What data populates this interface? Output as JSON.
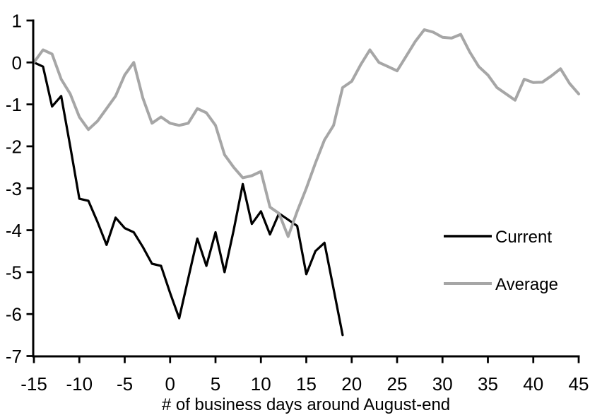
{
  "chart_data": {
    "type": "line",
    "title": "",
    "xlabel": "# of business days around August-end",
    "ylabel": "",
    "xlim": [
      -15,
      45
    ],
    "ylim": [
      -7,
      1
    ],
    "x_ticks": [
      -15,
      -10,
      -5,
      0,
      5,
      10,
      15,
      20,
      25,
      30,
      35,
      40,
      45
    ],
    "y_ticks": [
      1,
      0,
      -1,
      -2,
      -3,
      -4,
      -5,
      -6,
      -7
    ],
    "grid": false,
    "legend_position": "right-middle",
    "axis_color": "#000000",
    "series": [
      {
        "name": "Current",
        "color": "#000000",
        "stroke_width": 3.25,
        "x": [
          -15,
          -14,
          -13,
          -12,
          -11,
          -10,
          -9,
          -8,
          -7,
          -6,
          -5,
          -4,
          -3,
          -2,
          -1,
          0,
          1,
          2,
          3,
          4,
          5,
          6,
          7,
          8,
          9,
          10,
          11,
          12,
          13,
          14,
          15,
          16,
          17,
          18,
          19
        ],
        "values": [
          0.0,
          -0.1,
          -1.05,
          -0.8,
          -2.0,
          -3.25,
          -3.3,
          -3.8,
          -4.35,
          -3.7,
          -3.95,
          -4.05,
          -4.4,
          -4.8,
          -4.85,
          -5.5,
          -6.1,
          -5.15,
          -4.2,
          -4.85,
          -4.05,
          -5.0,
          -4.0,
          -2.9,
          -3.85,
          -3.55,
          -4.1,
          -3.6,
          -3.75,
          -3.9,
          -5.05,
          -4.5,
          -4.3,
          -5.4,
          -6.5
        ]
      },
      {
        "name": "Average",
        "color": "#a6a6a6",
        "stroke_width": 4,
        "x": [
          -15,
          -14,
          -13,
          -12,
          -11,
          -10,
          -9,
          -8,
          -7,
          -6,
          -5,
          -4,
          -3,
          -2,
          -1,
          0,
          1,
          2,
          3,
          4,
          5,
          6,
          7,
          8,
          9,
          10,
          11,
          12,
          13,
          14,
          15,
          16,
          17,
          18,
          19,
          20,
          21,
          22,
          23,
          24,
          25,
          26,
          27,
          28,
          29,
          30,
          31,
          32,
          33,
          34,
          35,
          36,
          37,
          38,
          39,
          40,
          41,
          42,
          43,
          44,
          45
        ],
        "values": [
          0.0,
          0.3,
          0.2,
          -0.4,
          -0.75,
          -1.3,
          -1.6,
          -1.4,
          -1.1,
          -0.8,
          -0.3,
          0.0,
          -0.85,
          -1.45,
          -1.3,
          -1.45,
          -1.5,
          -1.45,
          -1.1,
          -1.2,
          -1.5,
          -2.2,
          -2.5,
          -2.75,
          -2.7,
          -2.6,
          -3.45,
          -3.6,
          -4.15,
          -3.55,
          -3.0,
          -2.4,
          -1.85,
          -1.5,
          -0.6,
          -0.45,
          -0.05,
          0.3,
          0.0,
          -0.1,
          -0.2,
          0.15,
          0.5,
          0.78,
          0.72,
          0.6,
          0.58,
          0.67,
          0.25,
          -0.1,
          -0.3,
          -0.6,
          -0.75,
          -0.9,
          -0.4,
          -0.48,
          -0.47,
          -0.32,
          -0.15,
          -0.5,
          -0.75
        ]
      }
    ]
  }
}
